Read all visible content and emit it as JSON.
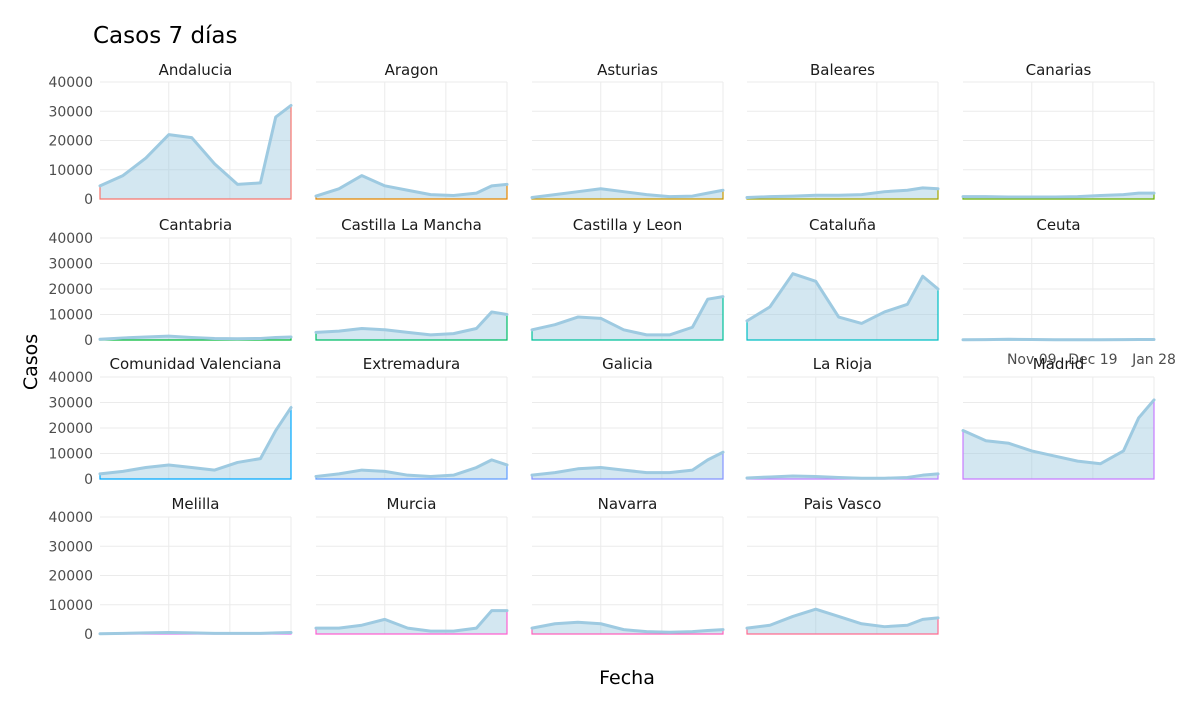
{
  "chart_data": {
    "type": "area",
    "title": "Casos 7 días",
    "xlabel": "Fecha",
    "ylabel": "Casos",
    "x_ticks": [
      "Nov 09",
      "Dec 19",
      "Jan 28"
    ],
    "y_ticks": [
      0,
      10000,
      20000,
      30000,
      40000
    ],
    "ylim": [
      0,
      40000
    ],
    "x_dates": [
      "2020-09-25",
      "2020-10-10",
      "2020-10-25",
      "2020-11-09",
      "2020-11-24",
      "2020-12-09",
      "2020-12-24",
      "2021-01-08",
      "2021-01-18",
      "2021-01-28"
    ],
    "grid": true,
    "facets": [
      {
        "name": "Andalucia",
        "outline_color": "#f8766d",
        "values": [
          4500,
          8000,
          14000,
          22000,
          21000,
          12000,
          5000,
          5500,
          28000,
          32000
        ]
      },
      {
        "name": "Aragon",
        "outline_color": "#e58700",
        "values": [
          1000,
          3500,
          8000,
          4500,
          3000,
          1500,
          1200,
          2000,
          4500,
          5000
        ]
      },
      {
        "name": "Asturias",
        "outline_color": "#c99800",
        "values": [
          500,
          1500,
          2500,
          3500,
          2500,
          1500,
          800,
          1000,
          2000,
          3000
        ]
      },
      {
        "name": "Baleares",
        "outline_color": "#a3a500",
        "values": [
          500,
          800,
          1000,
          1300,
          1300,
          1500,
          2500,
          3000,
          3800,
          3500
        ]
      },
      {
        "name": "Canarias",
        "outline_color": "#6bb100",
        "values": [
          800,
          800,
          700,
          700,
          700,
          800,
          1200,
          1500,
          2000,
          2000
        ]
      },
      {
        "name": "Cantabria",
        "outline_color": "#00ba38",
        "values": [
          300,
          800,
          1200,
          1500,
          1000,
          600,
          500,
          600,
          1000,
          1200
        ]
      },
      {
        "name": "Castilla La Mancha",
        "outline_color": "#00be67",
        "values": [
          3000,
          3500,
          4500,
          4000,
          3000,
          2000,
          2500,
          4500,
          11000,
          10000
        ]
      },
      {
        "name": "Castilla y Leon",
        "outline_color": "#00c19a",
        "values": [
          4000,
          6000,
          9000,
          8500,
          4000,
          2000,
          2000,
          5000,
          16000,
          17000
        ]
      },
      {
        "name": "Cataluña",
        "outline_color": "#00bfc4",
        "values": [
          7500,
          13000,
          26000,
          23000,
          9000,
          6500,
          11000,
          14000,
          25000,
          20000
        ]
      },
      {
        "name": "Ceuta",
        "outline_color": "#00b8e7",
        "values": [
          100,
          150,
          300,
          200,
          100,
          100,
          100,
          150,
          200,
          200
        ]
      },
      {
        "name": "Comunidad Valenciana",
        "outline_color": "#00a9ff",
        "values": [
          2000,
          3000,
          4500,
          5500,
          4500,
          3500,
          6500,
          8000,
          19000,
          28000
        ]
      },
      {
        "name": "Extremadura",
        "outline_color": "#619cff",
        "values": [
          1000,
          2000,
          3500,
          3000,
          1500,
          1000,
          1500,
          4500,
          7500,
          5500
        ]
      },
      {
        "name": "Galicia",
        "outline_color": "#8494ff",
        "values": [
          1500,
          2500,
          4000,
          4500,
          3500,
          2500,
          2500,
          3500,
          7500,
          10500
        ]
      },
      {
        "name": "La Rioja",
        "outline_color": "#b983ff",
        "values": [
          400,
          800,
          1200,
          1000,
          600,
          300,
          300,
          600,
          1500,
          2000
        ]
      },
      {
        "name": "Madrid",
        "outline_color": "#c77cff",
        "values": [
          19000,
          15000,
          14000,
          11000,
          9000,
          7000,
          6000,
          11000,
          24000,
          31000
        ]
      },
      {
        "name": "Melilla",
        "outline_color": "#e76bf3",
        "values": [
          100,
          200,
          400,
          500,
          400,
          200,
          200,
          200,
          400,
          500
        ]
      },
      {
        "name": "Murcia",
        "outline_color": "#fd61d1",
        "values": [
          2000,
          2000,
          3000,
          5000,
          2000,
          1000,
          1000,
          2000,
          8000,
          8000
        ]
      },
      {
        "name": "Navarra",
        "outline_color": "#ff62bc",
        "values": [
          2000,
          3500,
          4000,
          3500,
          1500,
          800,
          600,
          800,
          1200,
          1500
        ]
      },
      {
        "name": "Pais Vasco",
        "outline_color": "#ff6c91",
        "values": [
          2000,
          3000,
          6000,
          8500,
          6000,
          3500,
          2500,
          3000,
          5000,
          5500
        ]
      }
    ],
    "x_tick_rows": [
      1,
      4
    ]
  }
}
